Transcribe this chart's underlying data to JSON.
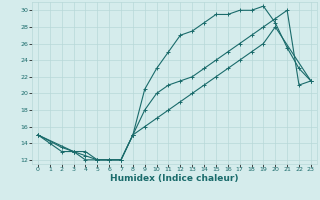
{
  "xlabel": "Humidex (Indice chaleur)",
  "background_color": "#d5ecec",
  "line_color": "#1a6b6b",
  "grid_color": "#b8d8d8",
  "xlim": [
    -0.5,
    23.5
  ],
  "ylim": [
    11.5,
    31
  ],
  "xticks": [
    0,
    1,
    2,
    3,
    4,
    5,
    6,
    7,
    8,
    9,
    10,
    11,
    12,
    13,
    14,
    15,
    16,
    17,
    18,
    19,
    20,
    21,
    22,
    23
  ],
  "yticks": [
    12,
    14,
    16,
    18,
    20,
    22,
    24,
    26,
    28,
    30
  ],
  "line1_x": [
    0,
    1,
    2,
    3,
    4,
    5,
    6,
    7,
    8,
    9,
    10,
    11,
    12,
    13,
    14,
    15,
    16,
    17,
    18,
    19,
    20,
    21,
    22,
    23
  ],
  "line1_y": [
    15,
    14,
    13,
    13,
    12,
    12,
    12,
    12,
    15,
    20.5,
    23,
    25,
    27,
    27.5,
    28.5,
    29.5,
    29.5,
    30,
    30,
    30.5,
    28.5,
    25.5,
    23,
    21.5
  ],
  "line2_x": [
    0,
    2,
    3,
    4,
    5,
    6,
    7,
    8,
    9,
    10,
    11,
    12,
    13,
    14,
    15,
    16,
    17,
    18,
    19,
    20,
    21,
    22,
    23
  ],
  "line2_y": [
    15,
    13.5,
    13,
    12.5,
    12,
    12,
    12,
    15,
    18,
    20,
    21,
    21.5,
    22,
    23,
    24,
    25,
    26,
    27,
    28,
    29,
    30,
    21,
    21.5
  ],
  "line3_x": [
    0,
    3,
    4,
    5,
    6,
    7,
    8,
    9,
    10,
    11,
    12,
    13,
    14,
    15,
    16,
    17,
    18,
    19,
    20,
    23
  ],
  "line3_y": [
    15,
    13,
    13,
    12,
    12,
    12,
    15,
    16,
    17,
    18,
    19,
    20,
    21,
    22,
    23,
    24,
    25,
    26,
    28,
    21.5
  ],
  "xlabel_fontsize": 6.5,
  "tick_fontsize": 4.5,
  "linewidth": 0.8,
  "markersize": 2.5
}
